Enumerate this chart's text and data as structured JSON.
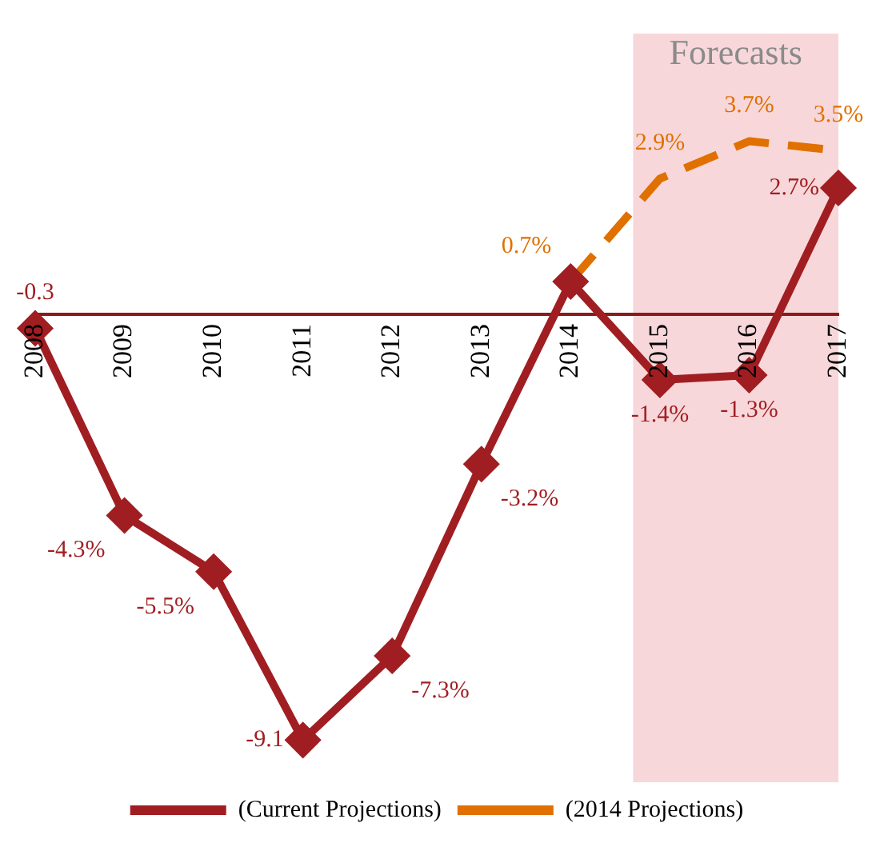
{
  "chart_data": {
    "type": "line",
    "categories": [
      "2008",
      "2009",
      "2010",
      "2011",
      "2012",
      "2013",
      "2014",
      "2015",
      "2016",
      "2017"
    ],
    "series": [
      {
        "name": "(Current Projections)",
        "color": "#a01e22",
        "marker": "diamond",
        "line_style": "solid",
        "values": [
          -0.3,
          -4.3,
          -5.5,
          -9.1,
          -7.3,
          -3.2,
          0.7,
          -1.4,
          -1.3,
          2.7
        ],
        "value_labels": [
          "-0.3",
          "-4.3%",
          "-5.5%",
          "-9.1",
          "-7.3%",
          "-3.2%",
          null,
          "-1.4%",
          "-1.3%",
          "2.7%"
        ]
      },
      {
        "name": "(2014 Projections)",
        "color": "#e07000",
        "marker": "none",
        "line_style": "dashed",
        "values": [
          null,
          null,
          null,
          null,
          null,
          null,
          0.7,
          2.9,
          3.7,
          3.5
        ],
        "value_labels": [
          null,
          null,
          null,
          null,
          null,
          null,
          "0.7%",
          "2.9%",
          "3.7%",
          "3.5%"
        ]
      }
    ],
    "tick_labels": "x",
    "grid": false,
    "legend": "bottom",
    "bands": [
      {
        "axis": "x",
        "from": "2015",
        "to": "2017",
        "label": "Forecasts",
        "color": "#f7d7da"
      }
    ]
  }
}
